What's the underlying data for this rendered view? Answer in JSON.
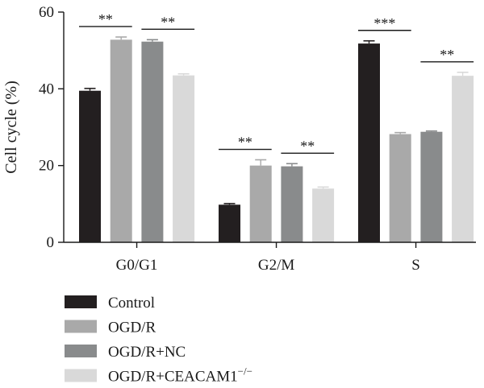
{
  "chart_data": {
    "type": "bar",
    "title": "",
    "xlabel": "",
    "ylabel": "Cell cycle (%)",
    "ylim": [
      0,
      60
    ],
    "yticks": [
      "0",
      "20",
      "40",
      "60"
    ],
    "grid": false,
    "legend_position": "bottom-left",
    "categories": [
      "G0/G1",
      "G2/M",
      "S"
    ],
    "series": [
      {
        "name": "Control",
        "color": "#231f20",
        "values": [
          39.5,
          9.8,
          51.8
        ],
        "errors": [
          0.6,
          0.3,
          0.7
        ]
      },
      {
        "name": "OGD/R",
        "color": "#a9a9a9",
        "values": [
          52.8,
          20.0,
          28.2
        ],
        "errors": [
          0.7,
          1.5,
          0.4
        ]
      },
      {
        "name": "OGD/R+NC",
        "color": "#898b8c",
        "values": [
          52.3,
          19.8,
          28.8
        ],
        "errors": [
          0.5,
          0.7,
          0.2
        ]
      },
      {
        "name": "OGD/R+CEACAM1",
        "name_superscript": "−/−",
        "color": "#d9d9d9",
        "values": [
          43.5,
          14.0,
          43.4
        ],
        "errors": [
          0.4,
          0.4,
          0.9
        ]
      }
    ],
    "significance": [
      {
        "category": 0,
        "from_series": 0,
        "to_series": 1,
        "label": "**"
      },
      {
        "category": 0,
        "from_series": 2,
        "to_series": 3,
        "label": "**"
      },
      {
        "category": 1,
        "from_series": 0,
        "to_series": 1,
        "label": "**"
      },
      {
        "category": 1,
        "from_series": 2,
        "to_series": 3,
        "label": "**"
      },
      {
        "category": 2,
        "from_series": 0,
        "to_series": 1,
        "label": "***"
      },
      {
        "category": 2,
        "from_series": 2,
        "to_series": 3,
        "label": "**"
      }
    ]
  }
}
